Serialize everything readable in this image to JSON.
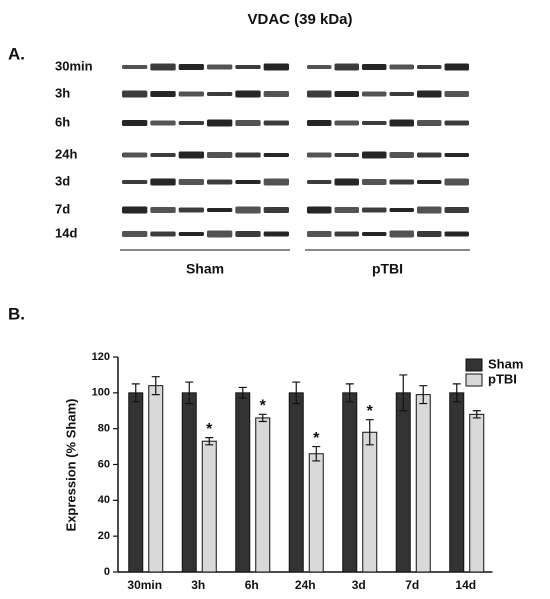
{
  "blot": {
    "title": "VDAC (39 kDa)",
    "panel_label": "A.",
    "rows": [
      "30min",
      "3h",
      "6h",
      "24h",
      "3d",
      "7d",
      "14d"
    ],
    "groups": [
      "Sham",
      "pTBI"
    ]
  },
  "chart_data": {
    "type": "bar",
    "panel_label": "B.",
    "y_label": "Expression (% Sham)",
    "categories": [
      "30min",
      "3h",
      "6h",
      "24h",
      "3d",
      "7d",
      "14d"
    ],
    "series": [
      {
        "name": "Sham",
        "color": "#333333",
        "values": [
          100,
          100,
          100,
          100,
          100,
          100,
          100
        ],
        "errors": [
          5,
          6,
          3,
          6,
          5,
          10,
          5
        ]
      },
      {
        "name": "pTBI",
        "color": "#d9d9d9",
        "values": [
          104,
          73,
          86,
          66,
          78,
          99,
          88
        ],
        "errors": [
          5,
          2,
          2,
          4,
          7,
          5,
          2
        ]
      }
    ],
    "annotations": [
      {
        "text": "*",
        "category": "3h"
      },
      {
        "text": "*",
        "category": "6h"
      },
      {
        "text": "*",
        "category": "24h"
      },
      {
        "text": "*",
        "category": "3d"
      }
    ],
    "ylim": [
      0,
      120
    ],
    "yticks": [
      0,
      20,
      40,
      60,
      80,
      100,
      120
    ],
    "legend": "top-right"
  }
}
